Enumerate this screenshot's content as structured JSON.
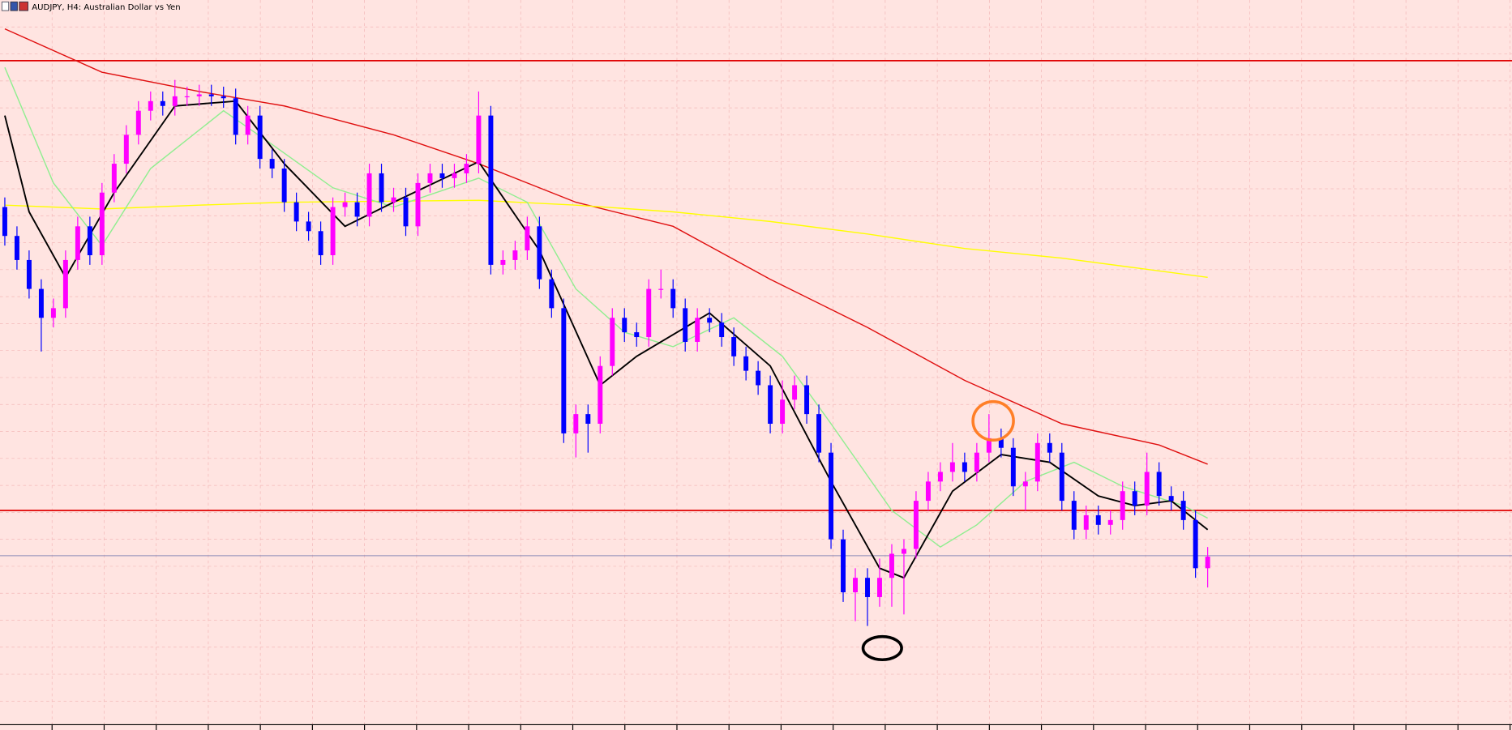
{
  "chart_data": {
    "type": "candlestick",
    "title": "AUDJPY, H4:  Australian Dollar vs Yen",
    "ylim": [
      0,
      758
    ],
    "grid": true,
    "up_color": "#ff00ff",
    "down_color": "#0000ff",
    "open": [
      543,
      513,
      488,
      458,
      428,
      438,
      488,
      523,
      493,
      558,
      588,
      618,
      643,
      653,
      648,
      658,
      658,
      660,
      658,
      656,
      618,
      638,
      593,
      583,
      548,
      528,
      518,
      493,
      543,
      548,
      533,
      578,
      548,
      553,
      523,
      568,
      578,
      573,
      578,
      588,
      638,
      483,
      488,
      498,
      523,
      468,
      438,
      308,
      328,
      318,
      378,
      428,
      413,
      408,
      458,
      458,
      438,
      403,
      428,
      423,
      408,
      388,
      373,
      358,
      318,
      343,
      358,
      328,
      288,
      198,
      143,
      158,
      138,
      158,
      183,
      188,
      238,
      258,
      268,
      278,
      268,
      288,
      303,
      293,
      253,
      258,
      298,
      288,
      238,
      208,
      223,
      213,
      218,
      248,
      233,
      268,
      243,
      238,
      218,
      168
    ],
    "high": [
      553,
      523,
      498,
      468,
      448,
      498,
      533,
      533,
      568,
      598,
      628,
      653,
      663,
      663,
      675,
      668,
      670,
      670,
      668,
      666,
      648,
      648,
      603,
      593,
      558,
      538,
      528,
      553,
      558,
      558,
      588,
      588,
      563,
      563,
      578,
      588,
      588,
      588,
      598,
      663,
      648,
      498,
      508,
      533,
      533,
      478,
      448,
      338,
      338,
      388,
      438,
      438,
      423,
      468,
      478,
      468,
      448,
      438,
      438,
      433,
      418,
      398,
      383,
      368,
      363,
      368,
      368,
      338,
      298,
      208,
      168,
      168,
      178,
      193,
      198,
      248,
      268,
      278,
      298,
      288,
      298,
      328,
      313,
      303,
      268,
      308,
      308,
      298,
      248,
      233,
      233,
      228,
      258,
      258,
      288,
      278,
      253,
      248,
      228,
      190
    ],
    "low": [
      503,
      478,
      448,
      393,
      418,
      428,
      478,
      483,
      483,
      548,
      578,
      608,
      633,
      638,
      638,
      648,
      648,
      648,
      646,
      608,
      608,
      583,
      573,
      538,
      518,
      508,
      483,
      483,
      533,
      523,
      523,
      538,
      538,
      513,
      513,
      558,
      563,
      563,
      568,
      578,
      473,
      473,
      478,
      488,
      458,
      428,
      298,
      283,
      288,
      308,
      368,
      403,
      398,
      398,
      448,
      428,
      393,
      393,
      413,
      398,
      378,
      363,
      348,
      308,
      308,
      333,
      318,
      278,
      188,
      133,
      113,
      108,
      128,
      128,
      120,
      178,
      228,
      248,
      258,
      258,
      258,
      278,
      283,
      243,
      228,
      248,
      278,
      228,
      198,
      198,
      203,
      203,
      208,
      223,
      223,
      233,
      228,
      208,
      158,
      148
    ],
    "close": [
      513,
      488,
      458,
      428,
      438,
      488,
      523,
      493,
      558,
      588,
      618,
      643,
      653,
      648,
      658,
      658,
      660,
      658,
      656,
      618,
      638,
      593,
      583,
      548,
      528,
      518,
      493,
      543,
      548,
      533,
      578,
      548,
      553,
      523,
      568,
      578,
      573,
      578,
      588,
      638,
      483,
      488,
      498,
      523,
      468,
      438,
      308,
      328,
      318,
      378,
      428,
      413,
      408,
      458,
      458,
      438,
      403,
      428,
      423,
      408,
      388,
      373,
      358,
      318,
      343,
      358,
      328,
      288,
      198,
      143,
      158,
      138,
      158,
      183,
      188,
      238,
      258,
      268,
      278,
      268,
      288,
      303,
      293,
      253,
      258,
      298,
      288,
      238,
      208,
      223,
      213,
      218,
      248,
      233,
      268,
      243,
      238,
      218,
      168,
      180
    ],
    "series": [
      {
        "color": "#e01010",
        "x": [
          0,
          8,
          16,
          23,
          32,
          39,
          47,
          55,
          63,
          71,
          79,
          87,
          95,
          99
        ],
        "values": [
          728,
          683,
          663,
          648,
          618,
          588,
          548,
          523,
          468,
          418,
          363,
          318,
          296,
          276
        ]
      },
      {
        "color": "#ffff00",
        "x": [
          0,
          8,
          16,
          23,
          39,
          47,
          55,
          63,
          71,
          79,
          87,
          99
        ],
        "values": [
          545,
          541,
          545,
          548,
          550,
          545,
          538,
          528,
          515,
          500,
          490,
          470
        ]
      },
      {
        "color": "#90ee90",
        "x": [
          0,
          4,
          8,
          12,
          18,
          22,
          27,
          32,
          39,
          43,
          47,
          51,
          55,
          60,
          64,
          68,
          73,
          77,
          80,
          84,
          88,
          92,
          97,
          99
        ],
        "values": [
          688,
          568,
          503,
          583,
          643,
          608,
          563,
          543,
          573,
          548,
          458,
          413,
          398,
          428,
          388,
          318,
          228,
          190,
          213,
          258,
          278,
          253,
          233,
          220
        ]
      },
      {
        "color": "#000000",
        "x": [
          0,
          2,
          5,
          9,
          14,
          19,
          23,
          28,
          32,
          39,
          44,
          49,
          52,
          58,
          63,
          68,
          72,
          74,
          78,
          82,
          86,
          90,
          93,
          96,
          99
        ],
        "values": [
          638,
          538,
          470,
          558,
          648,
          653,
          588,
          523,
          548,
          590,
          498,
          358,
          388,
          433,
          378,
          258,
          168,
          158,
          248,
          286,
          278,
          243,
          233,
          238,
          208
        ]
      }
    ],
    "hlines": [
      {
        "value": 695,
        "color": "#e00000"
      },
      {
        "value": 228,
        "color": "#e00000"
      },
      {
        "value": 181,
        "color": "#8a8ab8"
      }
    ]
  }
}
